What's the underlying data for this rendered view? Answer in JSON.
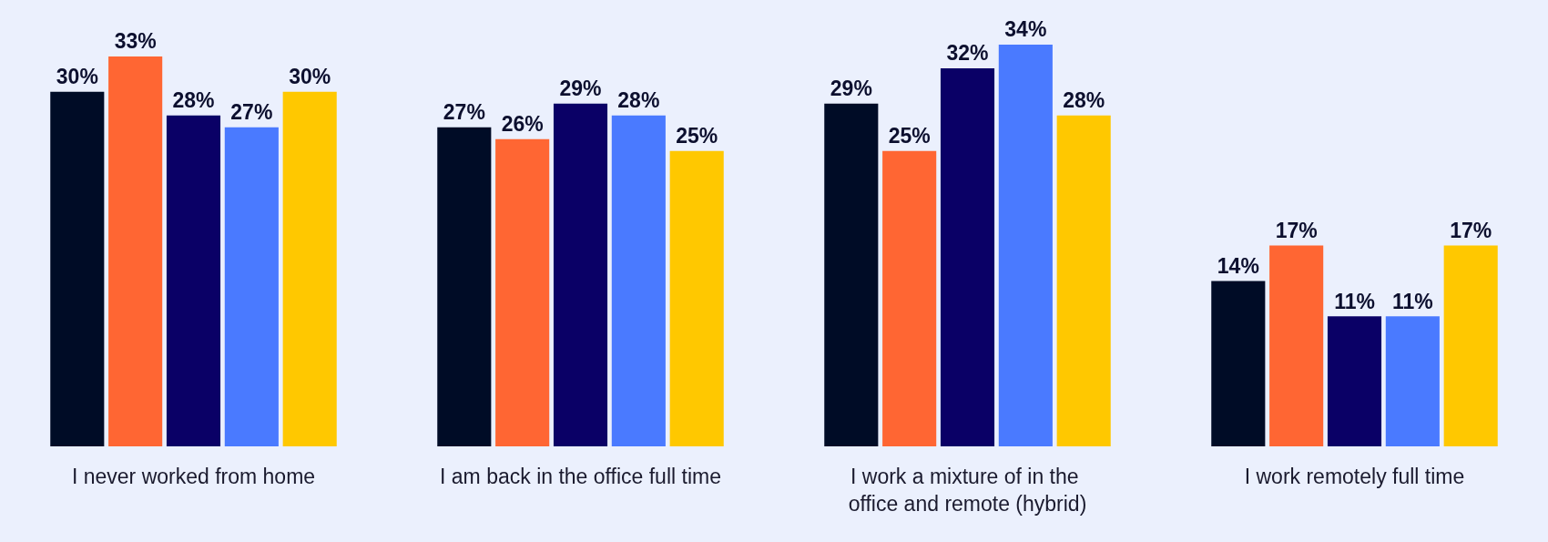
{
  "chart_data": {
    "type": "bar",
    "categories": [
      "I never worked from home",
      "I am back in the office full time",
      "I work a mixture of in the office and remote (hybrid)",
      "I work remotely full time"
    ],
    "series": [
      {
        "color": "#000c26",
        "values": [
          30,
          27,
          29,
          14
        ],
        "value_labels": [
          "30%",
          "27%",
          "29%",
          "14%"
        ]
      },
      {
        "color": "#ff6633",
        "values": [
          33,
          26,
          25,
          17
        ],
        "value_labels": [
          "33%",
          "26%",
          "25%",
          "17%"
        ]
      },
      {
        "color": "#0a0066",
        "values": [
          28,
          29,
          32,
          11
        ],
        "value_labels": [
          "28%",
          "29%",
          "32%",
          "11%"
        ]
      },
      {
        "color": "#4a7aff",
        "values": [
          27,
          28,
          34,
          11
        ],
        "value_labels": [
          "27%",
          "28%",
          "34%",
          "11%"
        ]
      },
      {
        "color": "#ffc800",
        "values": [
          30,
          25,
          28,
          17
        ],
        "value_labels": [
          "30%",
          "25%",
          "28%",
          "17%"
        ]
      }
    ]
  }
}
